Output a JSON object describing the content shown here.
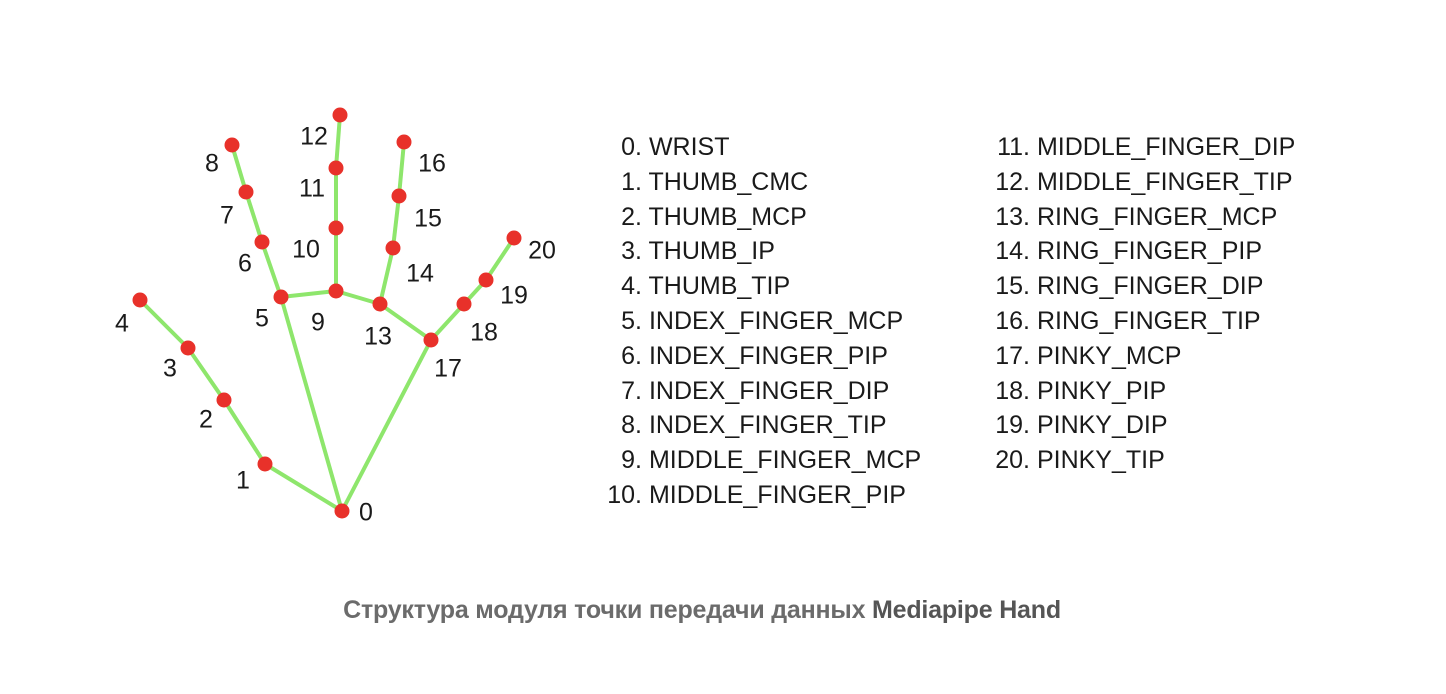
{
  "landmarks": [
    {
      "id": "0",
      "name": "WRIST"
    },
    {
      "id": "1",
      "name": "THUMB_CMC"
    },
    {
      "id": "2",
      "name": "THUMB_MCP"
    },
    {
      "id": "3",
      "name": "THUMB_IP"
    },
    {
      "id": "4",
      "name": "THUMB_TIP"
    },
    {
      "id": "5",
      "name": "INDEX_FINGER_MCP"
    },
    {
      "id": "6",
      "name": "INDEX_FINGER_PIP"
    },
    {
      "id": "7",
      "name": "INDEX_FINGER_DIP"
    },
    {
      "id": "8",
      "name": "INDEX_FINGER_TIP"
    },
    {
      "id": "9",
      "name": "MIDDLE_FINGER_MCP"
    },
    {
      "id": "10",
      "name": "MIDDLE_FINGER_PIP"
    },
    {
      "id": "11",
      "name": "MIDDLE_FINGER_DIP"
    },
    {
      "id": "12",
      "name": "MIDDLE_FINGER_TIP"
    },
    {
      "id": "13",
      "name": "RING_FINGER_MCP"
    },
    {
      "id": "14",
      "name": "RING_FINGER_PIP"
    },
    {
      "id": "15",
      "name": "RING_FINGER_DIP"
    },
    {
      "id": "16",
      "name": "RING_FINGER_TIP"
    },
    {
      "id": "17",
      "name": "PINKY_MCP"
    },
    {
      "id": "18",
      "name": "PINKY_PIP"
    },
    {
      "id": "19",
      "name": "PINKY_DIP"
    },
    {
      "id": "20",
      "name": "PINKY_TIP"
    }
  ],
  "connections": [
    [
      0,
      1
    ],
    [
      1,
      2
    ],
    [
      2,
      3
    ],
    [
      3,
      4
    ],
    [
      0,
      5
    ],
    [
      5,
      6
    ],
    [
      6,
      7
    ],
    [
      7,
      8
    ],
    [
      5,
      9
    ],
    [
      9,
      10
    ],
    [
      10,
      11
    ],
    [
      11,
      12
    ],
    [
      9,
      13
    ],
    [
      13,
      14
    ],
    [
      14,
      15
    ],
    [
      15,
      16
    ],
    [
      13,
      17
    ],
    [
      0,
      17
    ],
    [
      17,
      18
    ],
    [
      18,
      19
    ],
    [
      19,
      20
    ]
  ],
  "colors": {
    "edge": "#8ee66c",
    "node": "#e8312a",
    "caption": "#6b6b6b"
  },
  "caption": {
    "text": "Структура модуля точки передачи данных ",
    "brand": "Mediapipe Hand"
  }
}
